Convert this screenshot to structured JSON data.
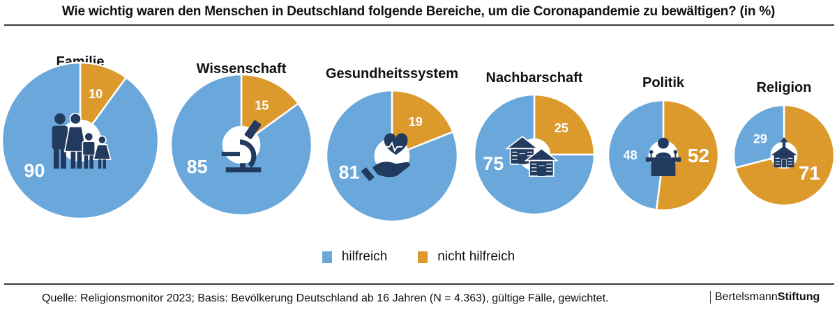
{
  "colors": {
    "hilfreich": "#6aa8dc",
    "nicht_hilfreich": "#dd9a2c",
    "icon": "#223a5e"
  },
  "chart_data": {
    "type": "pie",
    "title": "Wie wichtig waren den Menschen in Deutschland folgende Bereiche, um die Coronapandemie zu bewältigen? (in %)",
    "legend": [
      "hilfreich",
      "nicht hilfreich"
    ],
    "legend_position": "bottom-center",
    "charts": [
      {
        "name": "Familie",
        "icon": "family-icon",
        "hilfreich": 90,
        "nicht_hilfreich": 10
      },
      {
        "name": "Wissenschaft",
        "icon": "microscope-icon",
        "hilfreich": 85,
        "nicht_hilfreich": 15
      },
      {
        "name": "Gesundheitssystem",
        "icon": "heart-in-hand-icon",
        "hilfreich": 81,
        "nicht_hilfreich": 19
      },
      {
        "name": "Nachbarschaft",
        "icon": "houses-icon",
        "hilfreich": 75,
        "nicht_hilfreich": 25
      },
      {
        "name": "Politik",
        "icon": "speaker-podium-icon",
        "hilfreich": 48,
        "nicht_hilfreich": 52
      },
      {
        "name": "Religion",
        "icon": "church-icon",
        "hilfreich": 29,
        "nicht_hilfreich": 71
      }
    ]
  },
  "footer": {
    "source": "Quelle: Religionsmonitor 2023; Basis: Bevölkerung Deutschland ab 16 Jahren (N = 4.363), gültige Fälle, gewichtet.",
    "brand_light": "Bertelsmann",
    "brand_bold": "Stiftung"
  }
}
